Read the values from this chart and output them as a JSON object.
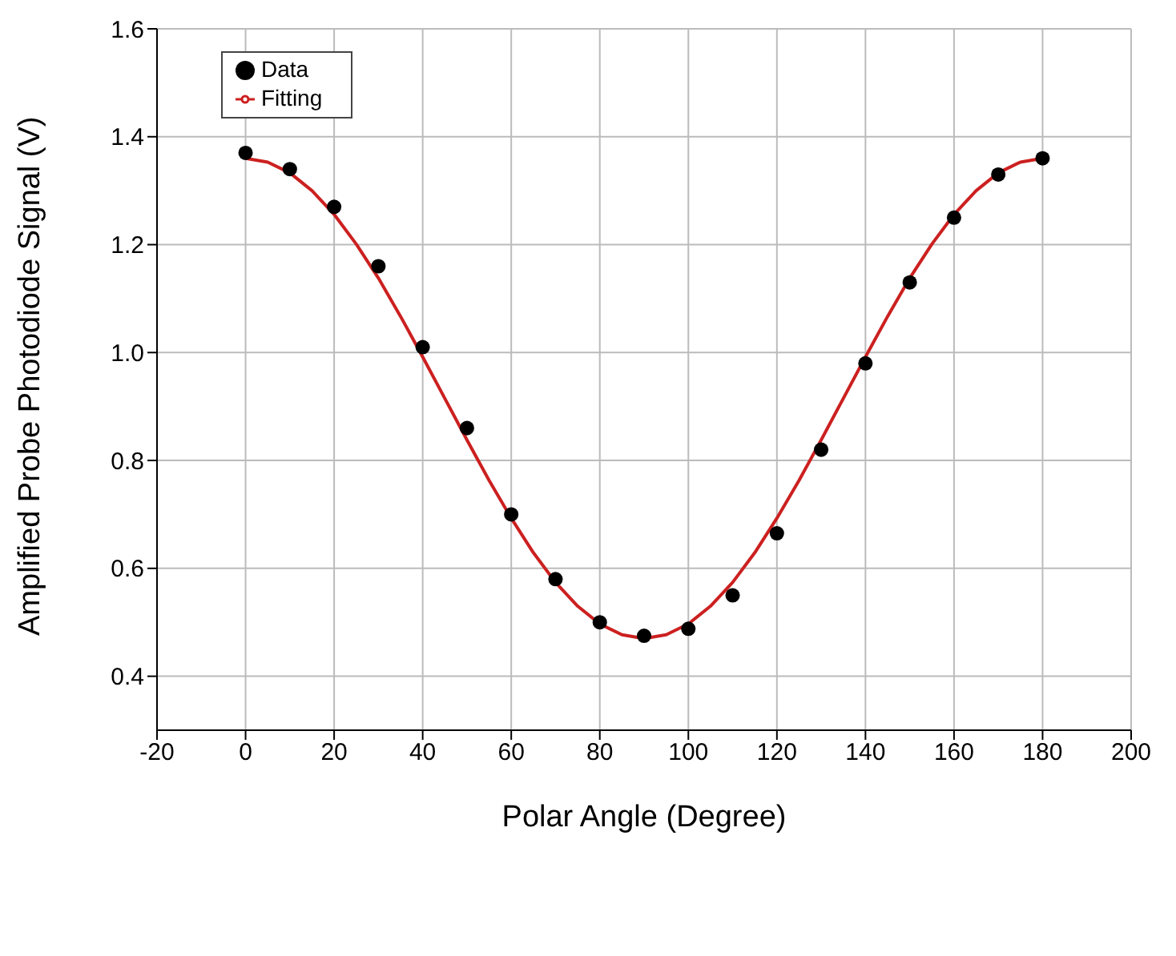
{
  "chart_data": {
    "type": "scatter",
    "xlabel": "Polar Angle (Degree)",
    "ylabel": "Amplified Probe Photodiode Signal (V)",
    "xlim": [
      -20,
      200
    ],
    "xticks": [
      -20,
      0,
      20,
      40,
      60,
      80,
      100,
      120,
      140,
      160,
      180,
      200
    ],
    "ylim": [
      0.3,
      1.6
    ],
    "yticks": [
      0.4,
      0.6,
      0.8,
      {
        "value": 1,
        "label": "1.0"
      },
      1.2,
      1.4,
      1.6
    ],
    "grid": true,
    "legend": "top left",
    "series": [
      {
        "name": "Data",
        "marker": "circle",
        "color": "#000000",
        "x": [
          0,
          10,
          20,
          30,
          40,
          50,
          60,
          70,
          80,
          90,
          100,
          110,
          120,
          130,
          140,
          150,
          160,
          170,
          180
        ],
        "values": [
          1.37,
          1.34,
          1.27,
          1.16,
          1.01,
          0.86,
          0.7,
          0.58,
          0.5,
          0.475,
          0.488,
          0.55,
          0.665,
          0.82,
          0.98,
          1.13,
          1.25,
          1.33,
          1.36
        ]
      },
      {
        "name": "Fitting",
        "type": "line",
        "marker": "none",
        "line_style": "solid",
        "color": "#cc2020",
        "x": [
          0,
          5,
          10,
          15,
          20,
          25,
          30,
          35,
          40,
          45,
          50,
          55,
          60,
          65,
          70,
          75,
          80,
          85,
          90,
          95,
          100,
          105,
          110,
          115,
          120,
          125,
          130,
          135,
          140,
          145,
          150,
          155,
          160,
          165,
          170,
          175,
          180
        ],
        "values": [
          1.36,
          1.353,
          1.333,
          1.3,
          1.256,
          1.201,
          1.138,
          1.067,
          0.992,
          0.915,
          0.838,
          0.763,
          0.693,
          0.629,
          0.574,
          0.53,
          0.497,
          0.477,
          0.47,
          0.477,
          0.497,
          0.53,
          0.574,
          0.629,
          0.693,
          0.763,
          0.838,
          0.915,
          0.992,
          1.067,
          1.138,
          1.201,
          1.256,
          1.3,
          1.333,
          1.353,
          1.36
        ]
      }
    ]
  }
}
